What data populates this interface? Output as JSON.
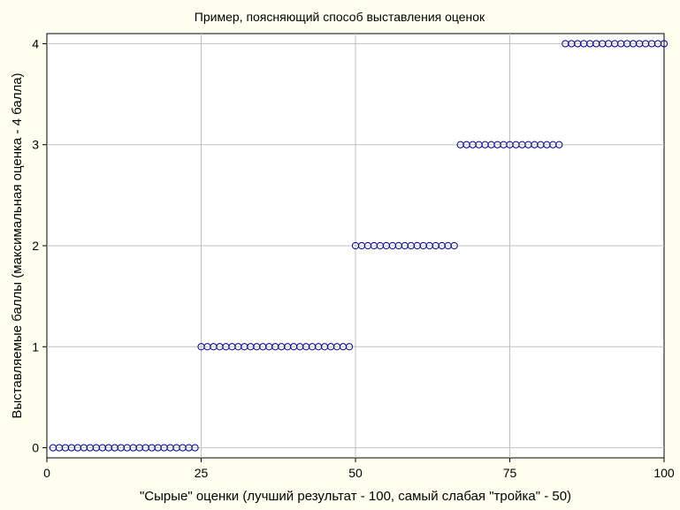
{
  "chart_data": {
    "type": "scatter",
    "title": "Пример, поясняющий способ выставления оценок",
    "xlabel": "\"Сырые\" оценки (лучший результат - 100, самый слабая \"тройка\" - 50)",
    "ylabel": "Выставляемые баллы (максимальная оценка - 4 балла)",
    "xlim": [
      0,
      100
    ],
    "ylim": [
      -0.1,
      4.1
    ],
    "xticks": [
      0,
      25,
      50,
      75,
      100
    ],
    "yticks": [
      0,
      1,
      2,
      3,
      4
    ],
    "grid": true,
    "marker": "open-circle",
    "colors": {
      "marker": "#00008b",
      "grid": "#c0c0c0",
      "plot_bg": "#ffffff",
      "page_bg": "#fffff0"
    },
    "segments": [
      {
        "x_start": 1,
        "x_end": 24,
        "y": 0
      },
      {
        "x_start": 25,
        "x_end": 49,
        "y": 1
      },
      {
        "x_start": 50,
        "x_end": 66,
        "y": 2
      },
      {
        "x_start": 67,
        "x_end": 83,
        "y": 3
      },
      {
        "x_start": 84,
        "x_end": 100,
        "y": 4
      }
    ]
  }
}
